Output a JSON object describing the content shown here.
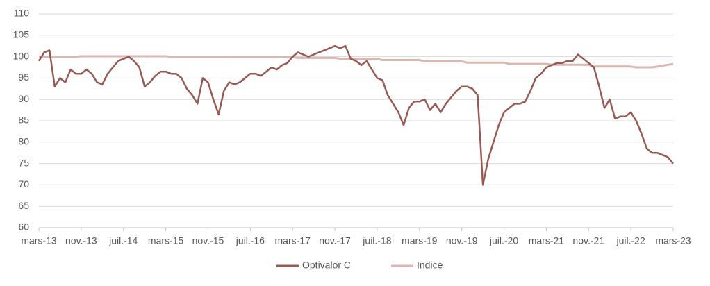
{
  "chart_data": {
    "type": "line",
    "categories": [
      "mars-13",
      null,
      null,
      null,
      null,
      null,
      null,
      null,
      "nov.-13",
      null,
      null,
      null,
      null,
      null,
      null,
      null,
      "juil.-14",
      null,
      null,
      null,
      null,
      null,
      null,
      null,
      "mars-15",
      null,
      null,
      null,
      null,
      null,
      null,
      null,
      "nov.-15",
      null,
      null,
      null,
      null,
      null,
      null,
      null,
      "juil.-16",
      null,
      null,
      null,
      null,
      null,
      null,
      null,
      "mars-17",
      null,
      null,
      null,
      null,
      null,
      null,
      null,
      "nov.-17",
      null,
      null,
      null,
      null,
      null,
      null,
      null,
      "juil.-18",
      null,
      null,
      null,
      null,
      null,
      null,
      null,
      "mars-19",
      null,
      null,
      null,
      null,
      null,
      null,
      null,
      "nov.-19",
      null,
      null,
      null,
      null,
      null,
      null,
      null,
      "juil.-20",
      null,
      null,
      null,
      null,
      null,
      null,
      null,
      "mars-21",
      null,
      null,
      null,
      null,
      null,
      null,
      null,
      "nov.-21",
      null,
      null,
      null,
      null,
      null,
      null,
      null,
      "juil.-22",
      null,
      null,
      null,
      null,
      null,
      null,
      null,
      "mars-23"
    ],
    "series": [
      {
        "name": "Optivalor C",
        "color": "#985952",
        "values": [
          99,
          101,
          101.5,
          93,
          95,
          94,
          97,
          96,
          96,
          97,
          96,
          94,
          93.5,
          96,
          97.5,
          99,
          99.5,
          100,
          99,
          97.5,
          93,
          94,
          95.5,
          96.5,
          96.5,
          96,
          96,
          95,
          92.5,
          91,
          89,
          95,
          94,
          90,
          86.5,
          92,
          94,
          93.5,
          94,
          95,
          96,
          96,
          95.5,
          96.5,
          97.5,
          97,
          98,
          98.5,
          100,
          101,
          100.5,
          100,
          100.5,
          101,
          101.5,
          102,
          102.5,
          102,
          102.5,
          99.5,
          99,
          98,
          99,
          97,
          95,
          94.5,
          91,
          89,
          87,
          84,
          88,
          89.5,
          89.5,
          90,
          87.5,
          89,
          87,
          89,
          90.5,
          92,
          93,
          93,
          92.5,
          91,
          70,
          76,
          80,
          84,
          87,
          88,
          89,
          89,
          89.5,
          92,
          95,
          96,
          97.5,
          98,
          98.5,
          98.5,
          99,
          99,
          100.5,
          99.5,
          98.5,
          97.5,
          93,
          88,
          90,
          85.5,
          86,
          86,
          87,
          85,
          82,
          78.5,
          77.5,
          77.5,
          77,
          76.5,
          75
        ]
      },
      {
        "name": "Indice",
        "color": "#dcb6b0",
        "values": [
          100,
          100,
          100,
          100,
          100,
          100,
          100,
          100,
          100.1,
          100.1,
          100.1,
          100.1,
          100.1,
          100.1,
          100.1,
          100.1,
          100.1,
          100.1,
          100.1,
          100.1,
          100.1,
          100.1,
          100.1,
          100.1,
          100.1,
          100,
          100,
          100,
          100,
          100,
          100,
          100,
          100,
          100,
          100,
          100,
          100,
          99.9,
          99.9,
          99.9,
          99.9,
          99.9,
          99.9,
          99.9,
          99.9,
          99.9,
          99.9,
          99.9,
          99.9,
          99.7,
          99.7,
          99.7,
          99.7,
          99.7,
          99.7,
          99.7,
          99.7,
          99.5,
          99.5,
          99.5,
          99.5,
          99.5,
          99.5,
          99.5,
          99.5,
          99.2,
          99.2,
          99.2,
          99.2,
          99.2,
          99.2,
          99.2,
          99.2,
          98.9,
          98.9,
          98.9,
          98.9,
          98.9,
          98.9,
          98.9,
          98.9,
          98.6,
          98.6,
          98.6,
          98.6,
          98.6,
          98.6,
          98.6,
          98.6,
          98.3,
          98.3,
          98.3,
          98.3,
          98.3,
          98.3,
          98.3,
          98.3,
          98.1,
          98.1,
          98.1,
          98.1,
          98.1,
          98.1,
          98.1,
          98.1,
          97.7,
          97.7,
          97.7,
          97.7,
          97.7,
          97.7,
          97.7,
          97.7,
          97.5,
          97.5,
          97.5,
          97.5,
          97.7,
          97.9,
          98.1,
          98.3
        ]
      }
    ],
    "ylim": [
      60,
      110
    ],
    "yticks": [
      60,
      65,
      70,
      75,
      80,
      85,
      90,
      95,
      100,
      105,
      110
    ],
    "grid": true,
    "legend": "bottom"
  }
}
